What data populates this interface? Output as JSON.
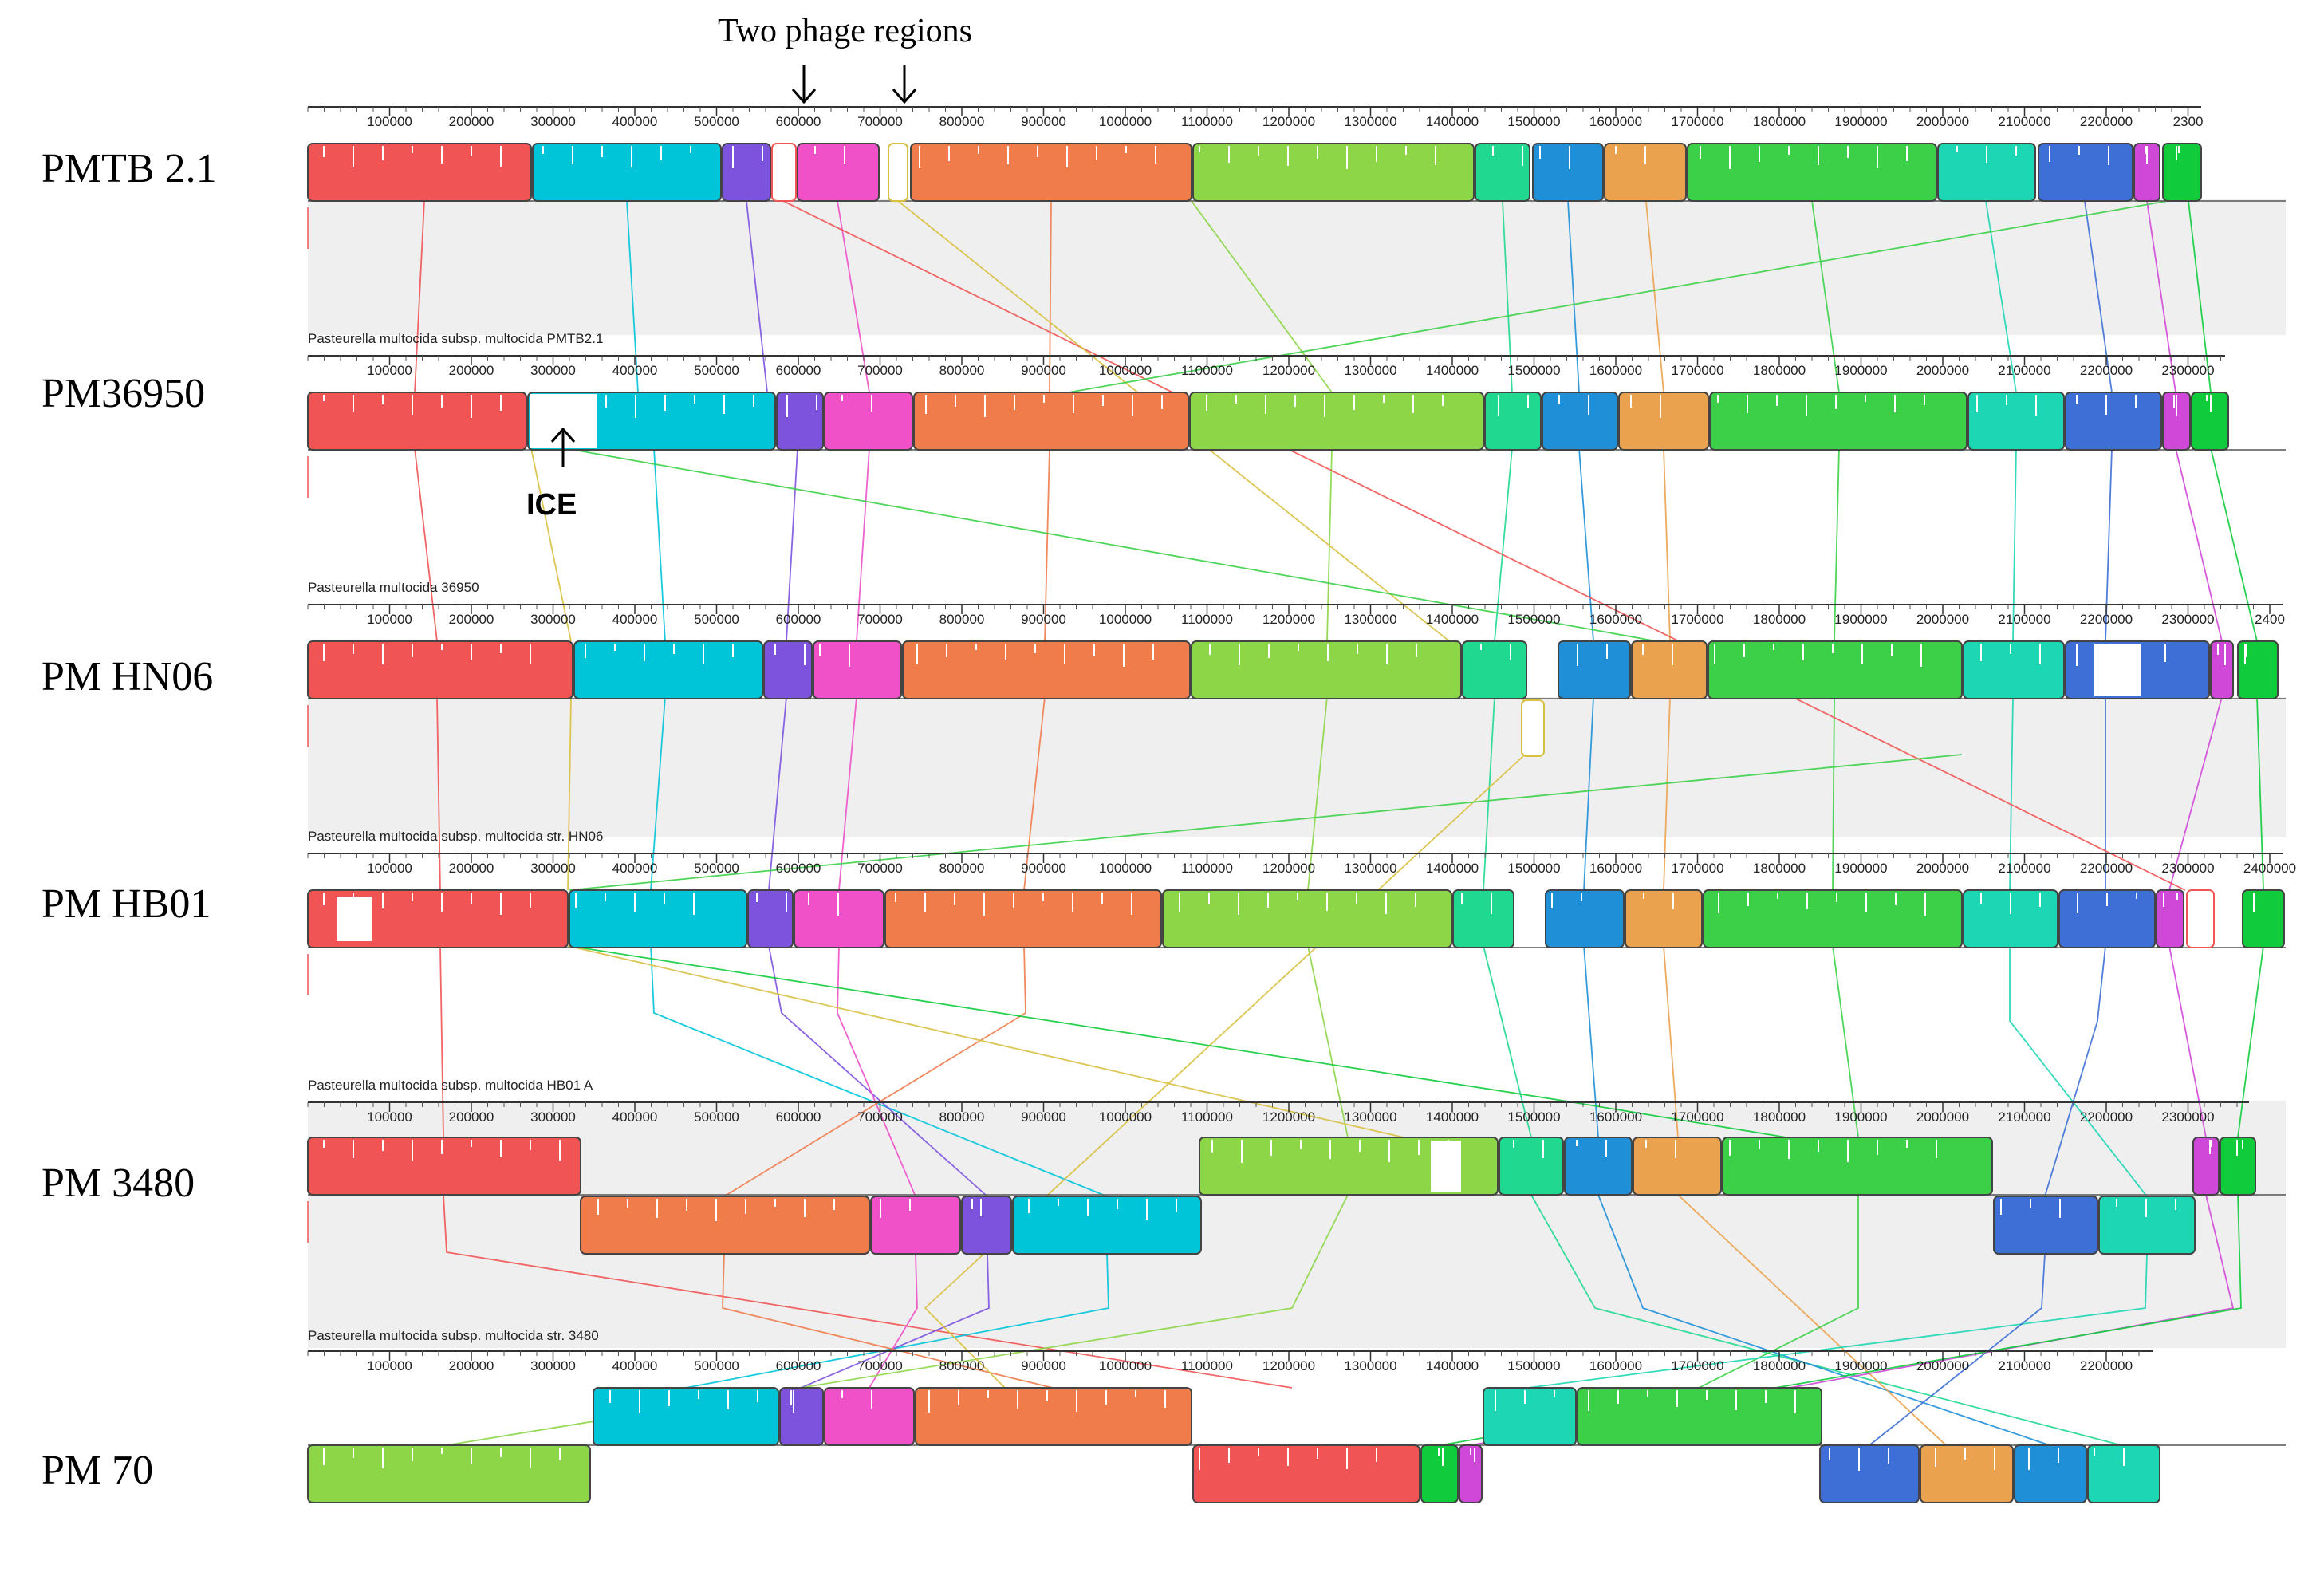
{
  "title": "Two phage regions",
  "ice_label": "ICE",
  "tracks": [
    {
      "label": "PMTB 2.1",
      "subtitle": "Pasteurella multocida subsp. multocida PMTB2.1",
      "ticks": [
        "100000",
        "200000",
        "300000",
        "400000",
        "500000",
        "600000",
        "700000",
        "800000",
        "900000",
        "1000000",
        "1100000",
        "1200000",
        "1300000",
        "1400000",
        "1500000",
        "1600000",
        "1700000",
        "1800000",
        "1900000",
        "2000000",
        "2100000",
        "2200000",
        "2300"
      ]
    },
    {
      "label": "PM36950",
      "subtitle": "Pasteurella multocida 36950",
      "ticks": [
        "100000",
        "200000",
        "300000",
        "400000",
        "500000",
        "600000",
        "700000",
        "800000",
        "900000",
        "1000000",
        "1100000",
        "1200000",
        "1300000",
        "1400000",
        "1500000",
        "1600000",
        "1700000",
        "1800000",
        "1900000",
        "2000000",
        "2100000",
        "2200000",
        "2300000"
      ]
    },
    {
      "label": "PM HN06",
      "subtitle": "Pasteurella multocida subsp. multocida str. HN06",
      "ticks": [
        "100000",
        "200000",
        "300000",
        "400000",
        "500000",
        "600000",
        "700000",
        "800000",
        "900000",
        "1000000",
        "1100000",
        "1200000",
        "1300000",
        "1400000",
        "1500000",
        "1600000",
        "1700000",
        "1800000",
        "1900000",
        "2000000",
        "2100000",
        "2200000",
        "2300000",
        "2400"
      ]
    },
    {
      "label": "PM HB01",
      "subtitle": "Pasteurella multocida subsp. multocida HB01 A",
      "ticks": [
        "100000",
        "200000",
        "300000",
        "400000",
        "500000",
        "600000",
        "700000",
        "800000",
        "900000",
        "1000000",
        "1100000",
        "1200000",
        "1300000",
        "1400000",
        "1500000",
        "1600000",
        "1700000",
        "1800000",
        "1900000",
        "2000000",
        "2100000",
        "2200000",
        "2300000",
        "2400000"
      ]
    },
    {
      "label": "PM 3480",
      "subtitle": "Pasteurella multocida subsp. multocida str. 3480",
      "ticks": [
        "100000",
        "200000",
        "300000",
        "400000",
        "500000",
        "600000",
        "700000",
        "800000",
        "900000",
        "1000000",
        "1100000",
        "1200000",
        "1300000",
        "1400000",
        "1500000",
        "1600000",
        "1700000",
        "1800000",
        "1900000",
        "2000000",
        "2100000",
        "2200000",
        "2300000"
      ]
    },
    {
      "label": "PM 70",
      "subtitle": "",
      "ticks": [
        "100000",
        "200000",
        "300000",
        "400000",
        "500000",
        "600000",
        "700000",
        "800000",
        "900000",
        "1000000",
        "1100000",
        "1200000",
        "1300000",
        "1400000",
        "1500000",
        "1600000",
        "1700000",
        "1800000",
        "1900000",
        "2000000",
        "2100000",
        "2200000"
      ]
    }
  ],
  "block_colors": {
    "red": "#f05454",
    "cyan": "#00c4d8",
    "purple": "#7d53de",
    "magenta": "#f050c8",
    "orange": "#f07c4c",
    "lime": "#8cd648",
    "teal": "#20d890",
    "blue": "#1f8fd8",
    "tan": "#eba24e",
    "green": "#3bd048",
    "aqua": "#1cd6b4",
    "navy": "#3d6fd6",
    "violet": "#d048d8",
    "brightgreen": "#10cc3c",
    "olive": "#d8c040"
  }
}
